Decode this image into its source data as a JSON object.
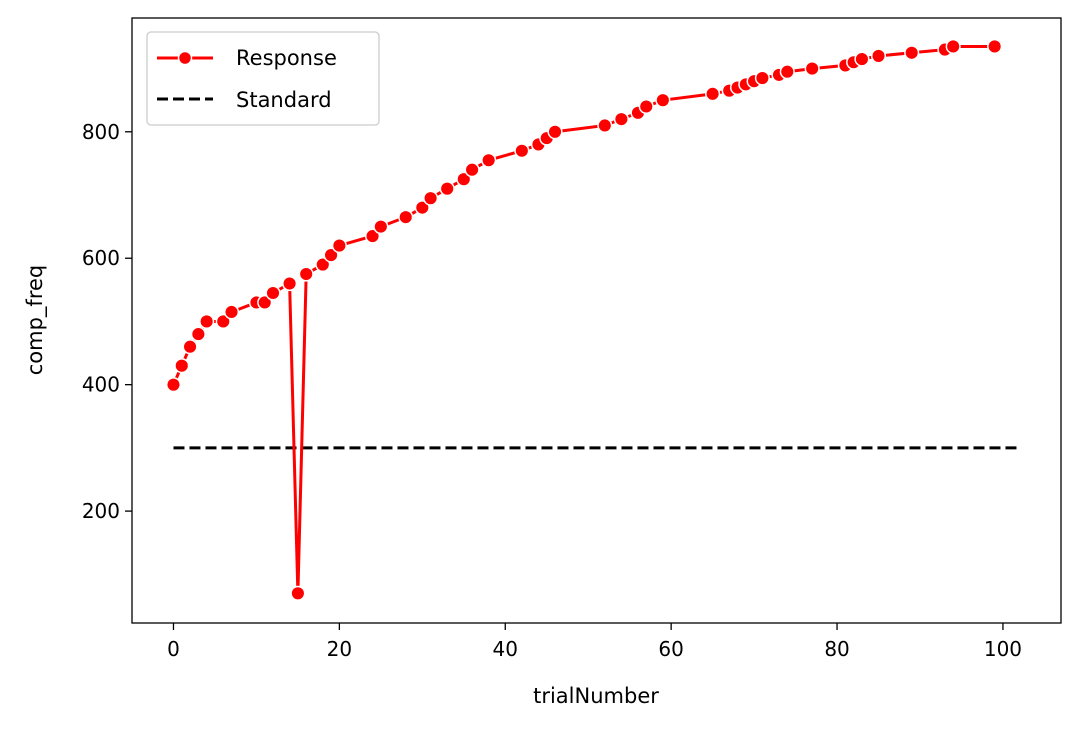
{
  "chart_data": {
    "type": "line",
    "xlabel": "trialNumber",
    "ylabel": "comp_freq",
    "xlim": [
      -5,
      107
    ],
    "ylim": [
      23,
      980
    ],
    "xticks": [
      0,
      20,
      40,
      60,
      80,
      100
    ],
    "yticks": [
      200,
      400,
      600,
      800
    ],
    "grid": false,
    "legend_position": "top-left",
    "series": [
      {
        "name": "Response",
        "color": "#ff0000",
        "marker": "circle",
        "x": [
          0,
          1,
          2,
          3,
          4,
          6,
          7,
          10,
          11,
          12,
          14,
          15,
          16,
          18,
          19,
          20,
          24,
          25,
          28,
          30,
          31,
          33,
          35,
          36,
          38,
          42,
          44,
          45,
          46,
          52,
          54,
          56,
          57,
          59,
          65,
          67,
          68,
          69,
          70,
          71,
          73,
          74,
          77,
          81,
          82,
          83,
          85,
          89,
          93,
          94,
          99
        ],
        "y": [
          400,
          430,
          460,
          480,
          500,
          500,
          515,
          530,
          530,
          545,
          560,
          70,
          575,
          590,
          605,
          620,
          635,
          650,
          665,
          680,
          695,
          710,
          725,
          740,
          755,
          770,
          780,
          790,
          800,
          810,
          820,
          830,
          840,
          850,
          860,
          865,
          870,
          875,
          880,
          885,
          890,
          895,
          900,
          905,
          910,
          915,
          920,
          925,
          930,
          935,
          935
        ]
      },
      {
        "name": "Standard",
        "color": "#000000",
        "style": "dashed",
        "x": [
          0,
          102
        ],
        "y": [
          300,
          300
        ]
      }
    ]
  }
}
